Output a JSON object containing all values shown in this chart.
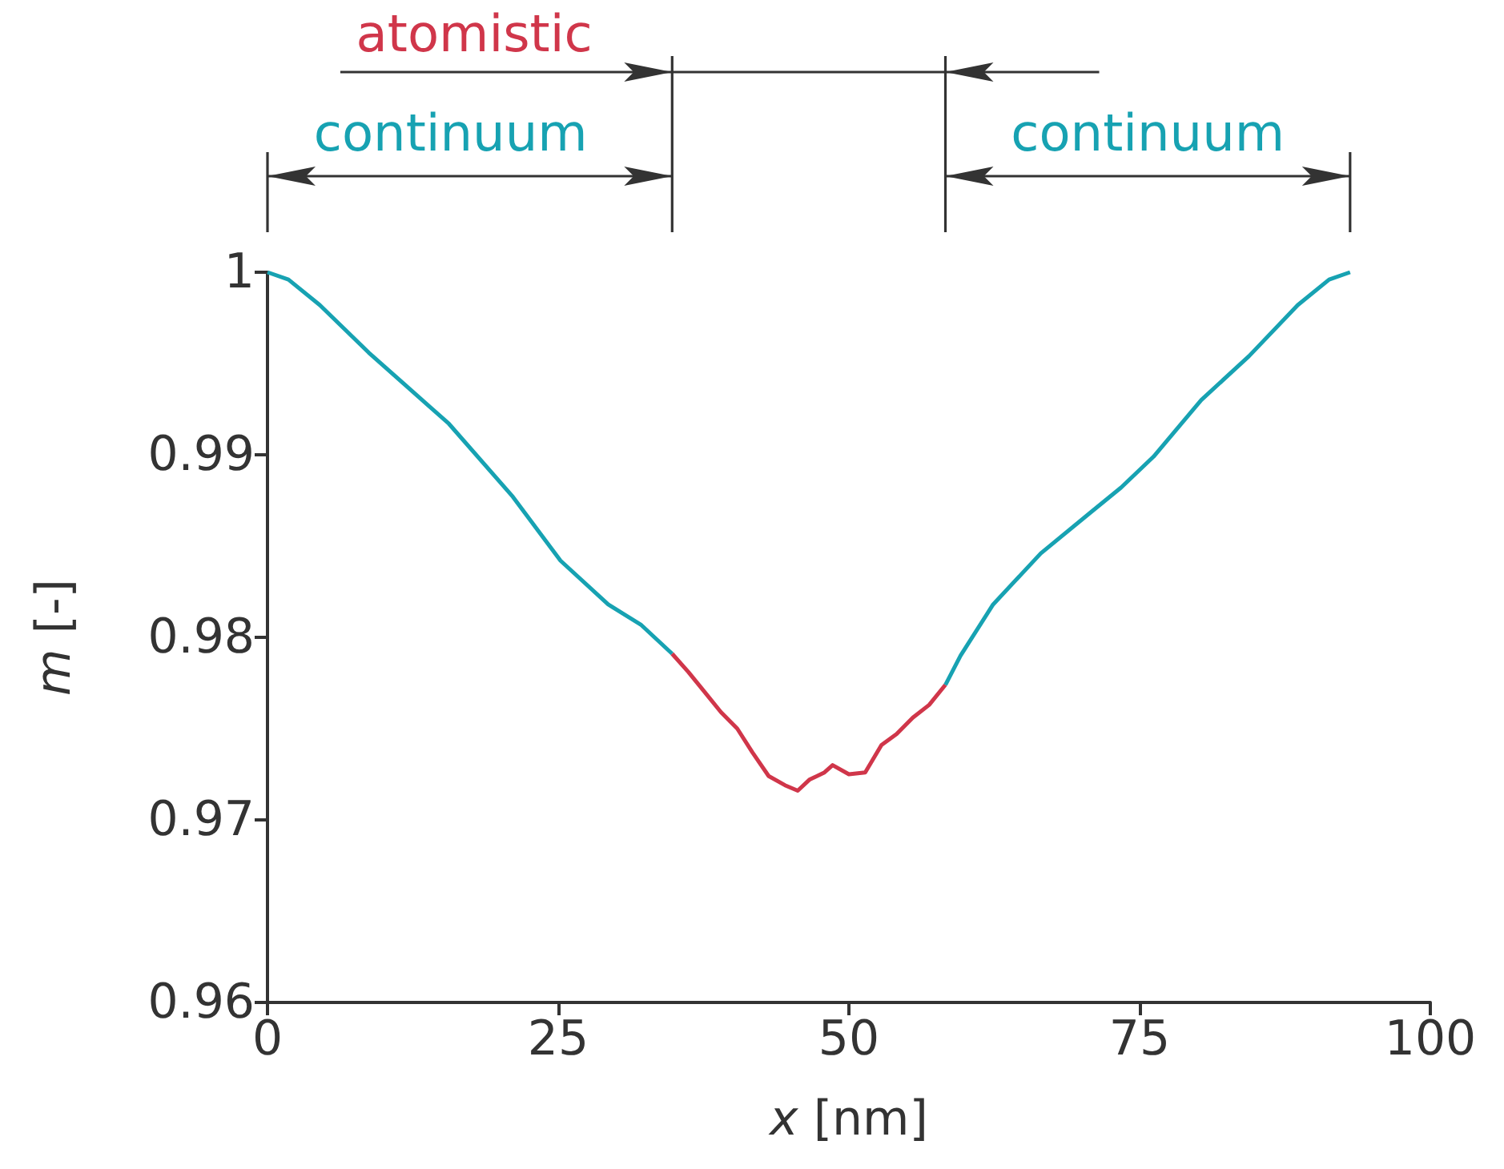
{
  "chart_data": {
    "type": "line",
    "xlabel": "x [nm]",
    "ylabel": "m [-]",
    "xlim": [
      0,
      100
    ],
    "xticks": [
      0,
      25,
      50,
      75,
      100
    ],
    "ylim": [
      0.96,
      1
    ],
    "yticks": [
      0.96,
      0.97,
      0.98,
      0.99,
      1
    ],
    "grid": false,
    "marker": "none",
    "line_style": "solid",
    "annotations": [
      "atomistic",
      "continuum",
      "continuum"
    ],
    "series": [
      {
        "color": "#17a2b2",
        "x": [
          0,
          1.8,
          4.5,
          8.7,
          15.6,
          21.1,
          25.2,
          29.3,
          32.1,
          34.8
        ],
        "values": [
          1,
          0.9996,
          0.9982,
          0.9956,
          0.9917,
          0.9877,
          0.9842,
          0.9818,
          0.9807,
          0.9791
        ]
      },
      {
        "color": "#d0364a",
        "x": [
          34.8,
          36.2,
          37.6,
          39,
          40.4,
          41.7,
          43.1,
          44.5,
          45.6,
          46.6,
          47.9,
          48.6,
          50,
          51.4,
          52.8,
          54.1,
          55.5,
          56.9,
          58.3
        ],
        "values": [
          0.9791,
          0.9781,
          0.977,
          0.9759,
          0.975,
          0.9737,
          0.9724,
          0.9719,
          0.9716,
          0.9722,
          0.9726,
          0.973,
          0.9725,
          0.9726,
          0.9741,
          0.9747,
          0.9756,
          0.9763,
          0.9774
        ]
      },
      {
        "color": "#17a2b2",
        "x": [
          58.3,
          59.6,
          62.4,
          66.5,
          70.7,
          73.4,
          76.2,
          80.3,
          84.4,
          88.6,
          91.3,
          93.1
        ],
        "values": [
          0.9774,
          0.979,
          0.9818,
          0.9846,
          0.9868,
          0.9882,
          0.9899,
          0.993,
          0.9954,
          0.9982,
          0.9996,
          1
        ]
      }
    ]
  }
}
